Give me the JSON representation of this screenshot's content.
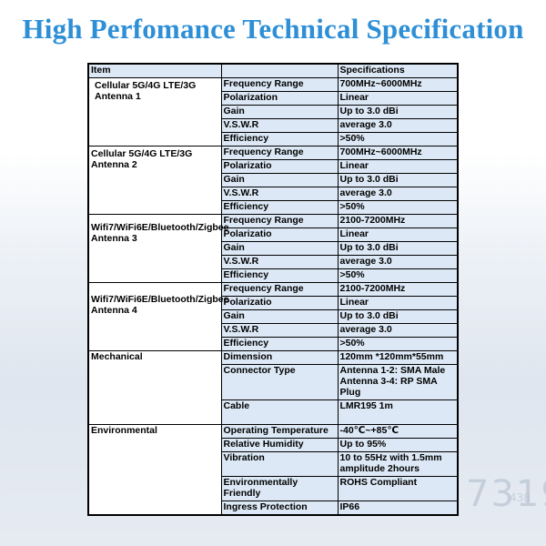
{
  "title": "High Perfomance Technical Specification",
  "table": {
    "header": {
      "item": "Item",
      "spec": "Specifications"
    },
    "groups": [
      {
        "item": "Cellular 5G/4G LTE/3G Antenna 1",
        "rows": [
          {
            "param": "Frequency Range",
            "value": "700MHz~6000MHz"
          },
          {
            "param": "Polarization",
            "value": "Linear"
          },
          {
            "param": "Gain",
            "value": "Up to 3.0 dBi"
          },
          {
            "param": "V.S.W.R",
            "value": "average 3.0"
          },
          {
            "param": "Efficiency",
            "value": ">50%"
          }
        ]
      },
      {
        "item": "Cellular 5G/4G LTE/3G Antenna 2",
        "rows": [
          {
            "param": "Frequency Range",
            "value": "700MHz~6000MHz"
          },
          {
            "param": "Polarizatio",
            "value": "Linear"
          },
          {
            "param": "Gain",
            "value": "Up to 3.0 dBi"
          },
          {
            "param": "V.S.W.R",
            "value": "average 3.0"
          },
          {
            "param": "Efficiency",
            "value": ">50%"
          }
        ]
      },
      {
        "item": "Wifi7/WiFi6E/Bluetooth/Zigbee Antenna 3",
        "rows": [
          {
            "param": "Frequency Range",
            "value": "2100-7200MHz"
          },
          {
            "param": "Polarizatio",
            "value": "Linear"
          },
          {
            "param": "Gain",
            "value": "Up to 3.0 dBi"
          },
          {
            "param": "V.S.W.R",
            "value": "average 3.0"
          },
          {
            "param": "Efficiency",
            "value": ">50%"
          }
        ]
      },
      {
        "item": "Wifi7/WiFi6E/Bluetooth/Zigbee  Antenna 4",
        "rows": [
          {
            "param": "Frequency Range",
            "value": "2100-7200MHz"
          },
          {
            "param": "Polarizatio",
            "value": "Linear"
          },
          {
            "param": "Gain",
            "value": "Up to 3.0 dBi"
          },
          {
            "param": "V.S.W.R",
            "value": "average 3.0"
          },
          {
            "param": "Efficiency",
            "value": ">50%"
          }
        ]
      },
      {
        "item": "Mechanical",
        "rows": [
          {
            "param": "Dimension",
            "value": "120mm *120mm*55mm"
          },
          {
            "param": "Connector Type",
            "value": "Antenna 1-2: SMA Male Antenna 3-4: RP SMA Plug"
          },
          {
            "param": "Cable",
            "value": "LMR195 1m"
          }
        ]
      },
      {
        "item": "Environmental",
        "rows": [
          {
            "param": "Operating Temperature",
            "value": "-40℃~+85℃"
          },
          {
            "param": "Relative Humidity",
            "value": "Up to 95%"
          },
          {
            "param": "Vibration",
            "value": "10 to 55Hz with 1.5mm amplitude 2hours"
          },
          {
            "param": "Environmentally Friendly",
            "value": "ROHS Compliant"
          },
          {
            "param": "Ingress Protection",
            "value": "IP66"
          }
        ]
      }
    ]
  }
}
